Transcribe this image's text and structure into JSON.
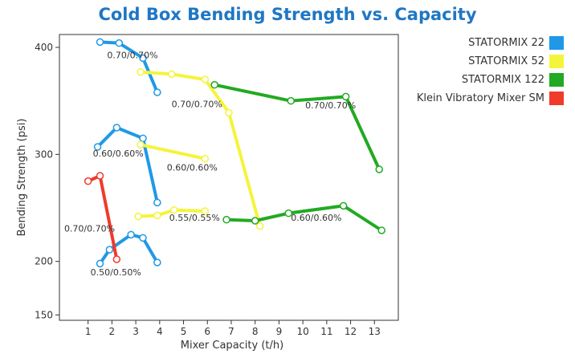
{
  "chart_data": {
    "type": "line",
    "title": "Cold Box Bending Strength vs. Capacity",
    "xlabel": "Mixer Capacity (t/h)",
    "ylabel": "Bending Strength (psi)",
    "xlim": [
      -0.2,
      14.0
    ],
    "ylim": [
      145,
      412
    ],
    "x_ticks": [
      1,
      2,
      3,
      4,
      5,
      6,
      7,
      8,
      9,
      10,
      11,
      12,
      13
    ],
    "y_ticks": [
      150,
      200,
      300,
      400
    ],
    "grid": false,
    "legend_position": "top-right",
    "series": [
      {
        "name": "STATORMIX 22",
        "color": "#1f99e6",
        "segments": [
          {
            "label": "0.70/0.70%",
            "x": [
              1.5,
              2.3,
              3.3,
              3.9
            ],
            "y": [
              405,
              404,
              390,
              358
            ]
          },
          {
            "label": "0.60/0.60%",
            "x": [
              1.4,
              2.2,
              3.3,
              3.9
            ],
            "y": [
              307,
              325,
              315,
              255
            ]
          },
          {
            "label": "0.50/0.50%",
            "x": [
              1.5,
              1.9,
              2.8,
              3.3,
              3.9
            ],
            "y": [
              198,
              211,
              225,
              222,
              199
            ]
          }
        ]
      },
      {
        "name": "STATORMIX 52",
        "color": "#f4f43c",
        "segments": [
          {
            "label": "0.70/0.70%",
            "x": [
              3.2,
              4.5,
              5.9,
              6.9,
              8.2
            ],
            "y": [
              377,
              375,
              370,
              339,
              233
            ]
          },
          {
            "label": "0.60/0.60%",
            "x": [
              3.2,
              5.9
            ],
            "y": [
              309,
              296
            ]
          },
          {
            "label": "0.55/0.55%",
            "x": [
              3.1,
              3.9,
              4.6,
              5.9
            ],
            "y": [
              242,
              243,
              248,
              247
            ]
          }
        ]
      },
      {
        "name": "STATORMIX 122",
        "color": "#22aa22",
        "segments": [
          {
            "label": "0.70/0.70%",
            "x": [
              6.3,
              9.5,
              11.8,
              13.2
            ],
            "y": [
              365,
              350,
              354,
              286
            ]
          },
          {
            "label": "0.60/0.60%",
            "x": [
              6.8,
              8.0,
              9.4,
              11.7,
              13.3
            ],
            "y": [
              239,
              238,
              245,
              252,
              229
            ]
          }
        ]
      },
      {
        "name": "Klein Vibratory Mixer SM",
        "color": "#f03a2a",
        "segments": [
          {
            "label": "0.70/0.70%",
            "x": [
              1.0,
              1.5,
              2.2
            ],
            "y": [
              275,
              280,
              202
            ]
          }
        ]
      }
    ],
    "annotations": [
      {
        "text": "0.70/0.70%",
        "x": 1.8,
        "y": 390
      },
      {
        "text": "0.70/0.70%",
        "x": 4.5,
        "y": 344
      },
      {
        "text": "0.70/0.70%",
        "x": 10.1,
        "y": 343
      },
      {
        "text": "0.60/0.60%",
        "x": 1.2,
        "y": 298
      },
      {
        "text": "0.60/0.60%",
        "x": 4.3,
        "y": 285
      },
      {
        "text": "0.55/0.55%",
        "x": 4.4,
        "y": 238
      },
      {
        "text": "0.60/0.60%",
        "x": 9.5,
        "y": 238
      },
      {
        "text": "0.70/0.70%",
        "x": 0.0,
        "y": 228
      },
      {
        "text": "0.50/0.50%",
        "x": 1.1,
        "y": 187
      }
    ]
  }
}
